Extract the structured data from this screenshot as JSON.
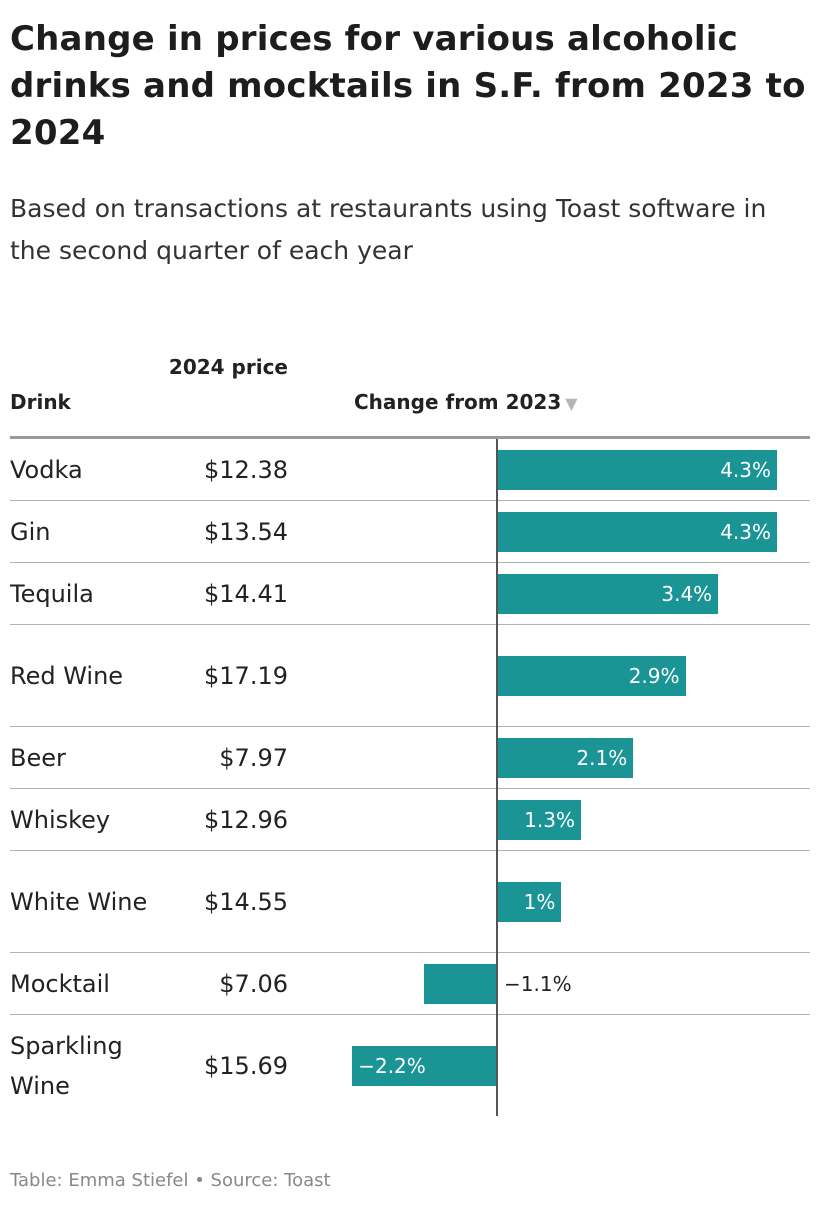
{
  "title": "Change in prices for various alcoholic drinks and mocktails in S.F. from 2023 to 2024",
  "subtitle": "Based on transactions at restaurants using Toast software in the second quarter of each year",
  "table": {
    "col_drink": "Drink",
    "col_price": "2024 price",
    "col_change": "Change from 2023",
    "sort_icon": "▼",
    "colors": {
      "bar": "#1b9496",
      "rule": "#999999",
      "axis": "#555555"
    }
  },
  "chart_data": {
    "type": "bar",
    "orientation": "horizontal",
    "title": "Change in prices for various alcoholic drinks and mocktails in S.F. from 2023 to 2024",
    "subtitle": "Based on transactions at restaurants using Toast software in the second quarter of each year",
    "categories": [
      "Vodka",
      "Gin",
      "Tequila",
      "Red Wine",
      "Beer",
      "Whiskey",
      "White Wine",
      "Mocktail",
      "Sparkling Wine"
    ],
    "prices": [
      "$12.38",
      "$13.54",
      "$14.41",
      "$17.19",
      "$7.97",
      "$12.96",
      "$14.55",
      "$7.06",
      "$15.69"
    ],
    "values": [
      4.3,
      4.3,
      3.4,
      2.9,
      2.1,
      1.3,
      1,
      -1.1,
      -2.2
    ],
    "value_labels": [
      "4.3%",
      "4.3%",
      "3.4%",
      "2.9%",
      "2.1%",
      "1.3%",
      "1%",
      "−1.1%",
      "−2.2%"
    ],
    "unit": "%",
    "xlim": [
      -2.2,
      4.3
    ],
    "grid": false,
    "legend": "none"
  },
  "footer": "Table: Emma Stiefel • Source: Toast"
}
